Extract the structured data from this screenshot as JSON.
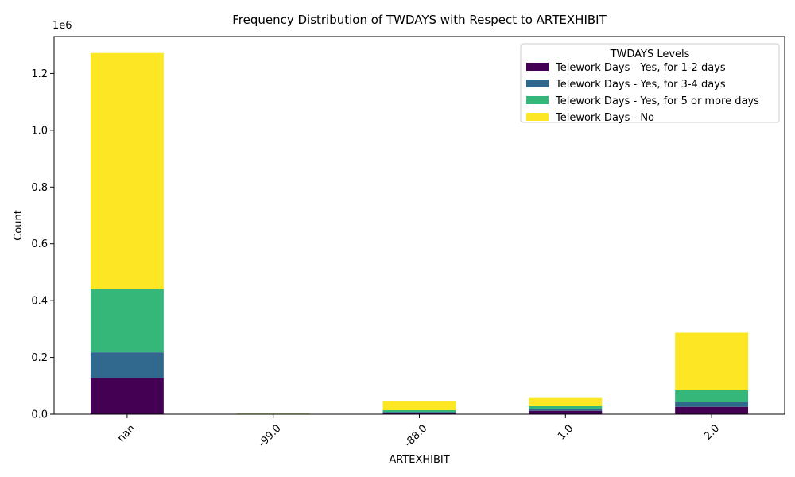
{
  "chart_data": {
    "type": "bar",
    "stacked": true,
    "title": "Frequency Distribution of TWDAYS with Respect to ARTEXHIBIT",
    "xlabel": "ARTEXHIBIT",
    "ylabel": "Count",
    "y_offset_label": "1e6",
    "categories": [
      "nan",
      "-99.0",
      "-88.0",
      "1.0",
      "2.0"
    ],
    "ylim": [
      0,
      1330000
    ],
    "yticks": [
      0,
      200000,
      400000,
      600000,
      800000,
      1000000,
      1200000
    ],
    "ytick_labels": [
      "0.0",
      "0.2",
      "0.4",
      "0.6",
      "0.8",
      "1.0",
      "1.2"
    ],
    "legend_title": "TWDAYS Levels",
    "legend_position": "top-right",
    "grid": false,
    "series": [
      {
        "name": "Telework Days - Yes, for 1-2 days",
        "color": "#440154",
        "values": [
          126000,
          1000,
          5000,
          12000,
          26000
        ]
      },
      {
        "name": "Telework Days - Yes, for 3-4 days",
        "color": "#31688e",
        "values": [
          92000,
          500,
          3000,
          7000,
          16000
        ]
      },
      {
        "name": "Telework Days - Yes, for 5 or more days",
        "color": "#35b779",
        "values": [
          223000,
          500,
          6000,
          9000,
          42000
        ]
      },
      {
        "name": "Telework Days - No",
        "color": "#fde725",
        "values": [
          831000,
          500,
          33000,
          29000,
          203000
        ]
      }
    ]
  }
}
